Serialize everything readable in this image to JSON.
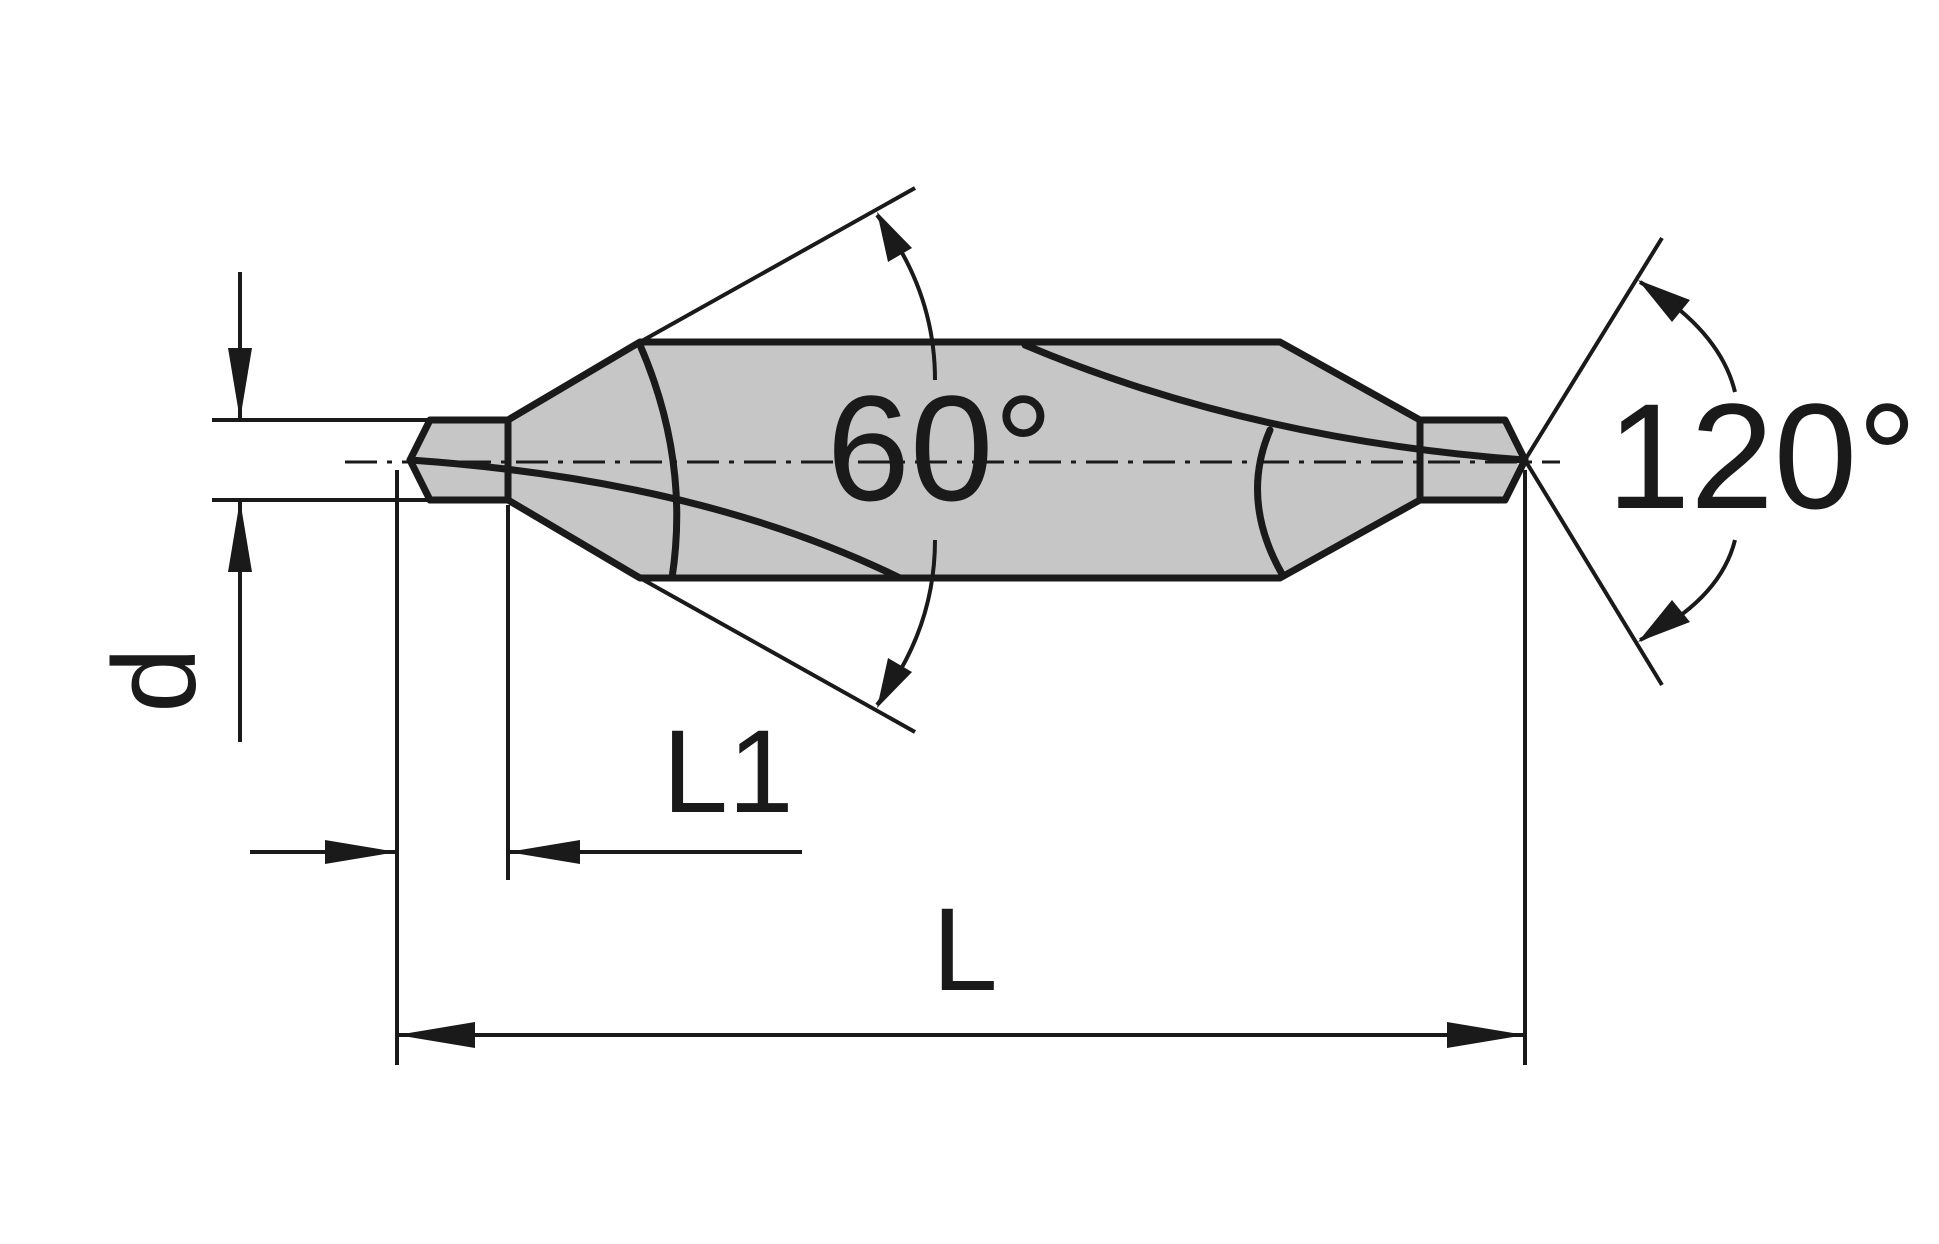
{
  "labels": {
    "diameter": "d",
    "tip_length": "L1",
    "overall_length": "L",
    "cone_angle": "60°",
    "point_angle": "120°"
  },
  "colors": {
    "line": "#1a1a1a",
    "body": "#c6c6c6",
    "background": "#ffffff"
  }
}
